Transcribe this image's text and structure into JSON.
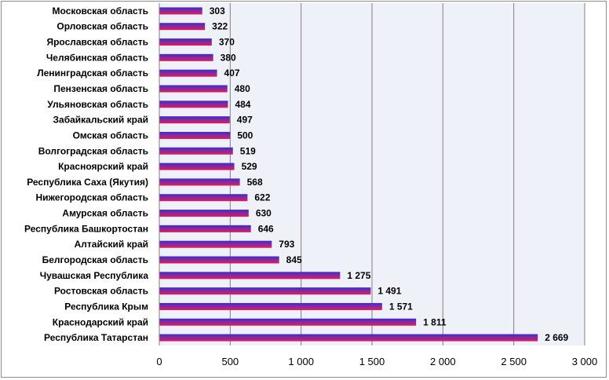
{
  "chart_data": {
    "type": "bar",
    "orientation": "horizontal",
    "categories": [
      "Московская область",
      "Орловская область",
      "Ярославская область",
      "Челябинская область",
      "Ленинградская область",
      "Пензенская область",
      "Ульяновская область",
      "Забайкальский край",
      "Омская область",
      "Волгоградская область",
      "Красноярский край",
      "Республика Саха (Якутия)",
      "Нижегородская область",
      "Амурская область",
      "Республика Башкортостан",
      "Алтайский край",
      "Белгородская область",
      "Чувашская Республика",
      "Ростовская область",
      "Республика Крым",
      "Краснодарский край",
      "Республика Татарстан"
    ],
    "values": [
      303,
      322,
      370,
      380,
      407,
      480,
      484,
      497,
      500,
      519,
      529,
      568,
      622,
      630,
      646,
      793,
      845,
      1275,
      1491,
      1571,
      1811,
      2669
    ],
    "value_labels": [
      "303",
      "322",
      "370",
      "380",
      "407",
      "480",
      "484",
      "497",
      "500",
      "519",
      "529",
      "568",
      "622",
      "630",
      "646",
      "793",
      "845",
      "1 275",
      "1 491",
      "1 571",
      "1 811",
      "2 669"
    ],
    "xlim": [
      0,
      3000
    ],
    "x_ticks": [
      0,
      500,
      1000,
      1500,
      2000,
      2500,
      3000
    ],
    "x_tick_labels": [
      "0",
      "500",
      "1 000",
      "1 500",
      "2 000",
      "2 500",
      "3 000"
    ],
    "grid": "vertical",
    "legend": "none",
    "colors": {
      "bar_top": "#3c2ad0",
      "bar_mid": "#8a2a9a",
      "bar_bottom": "#e4185a",
      "plot_bg": "#eef1f8",
      "grid": "#808080"
    }
  }
}
